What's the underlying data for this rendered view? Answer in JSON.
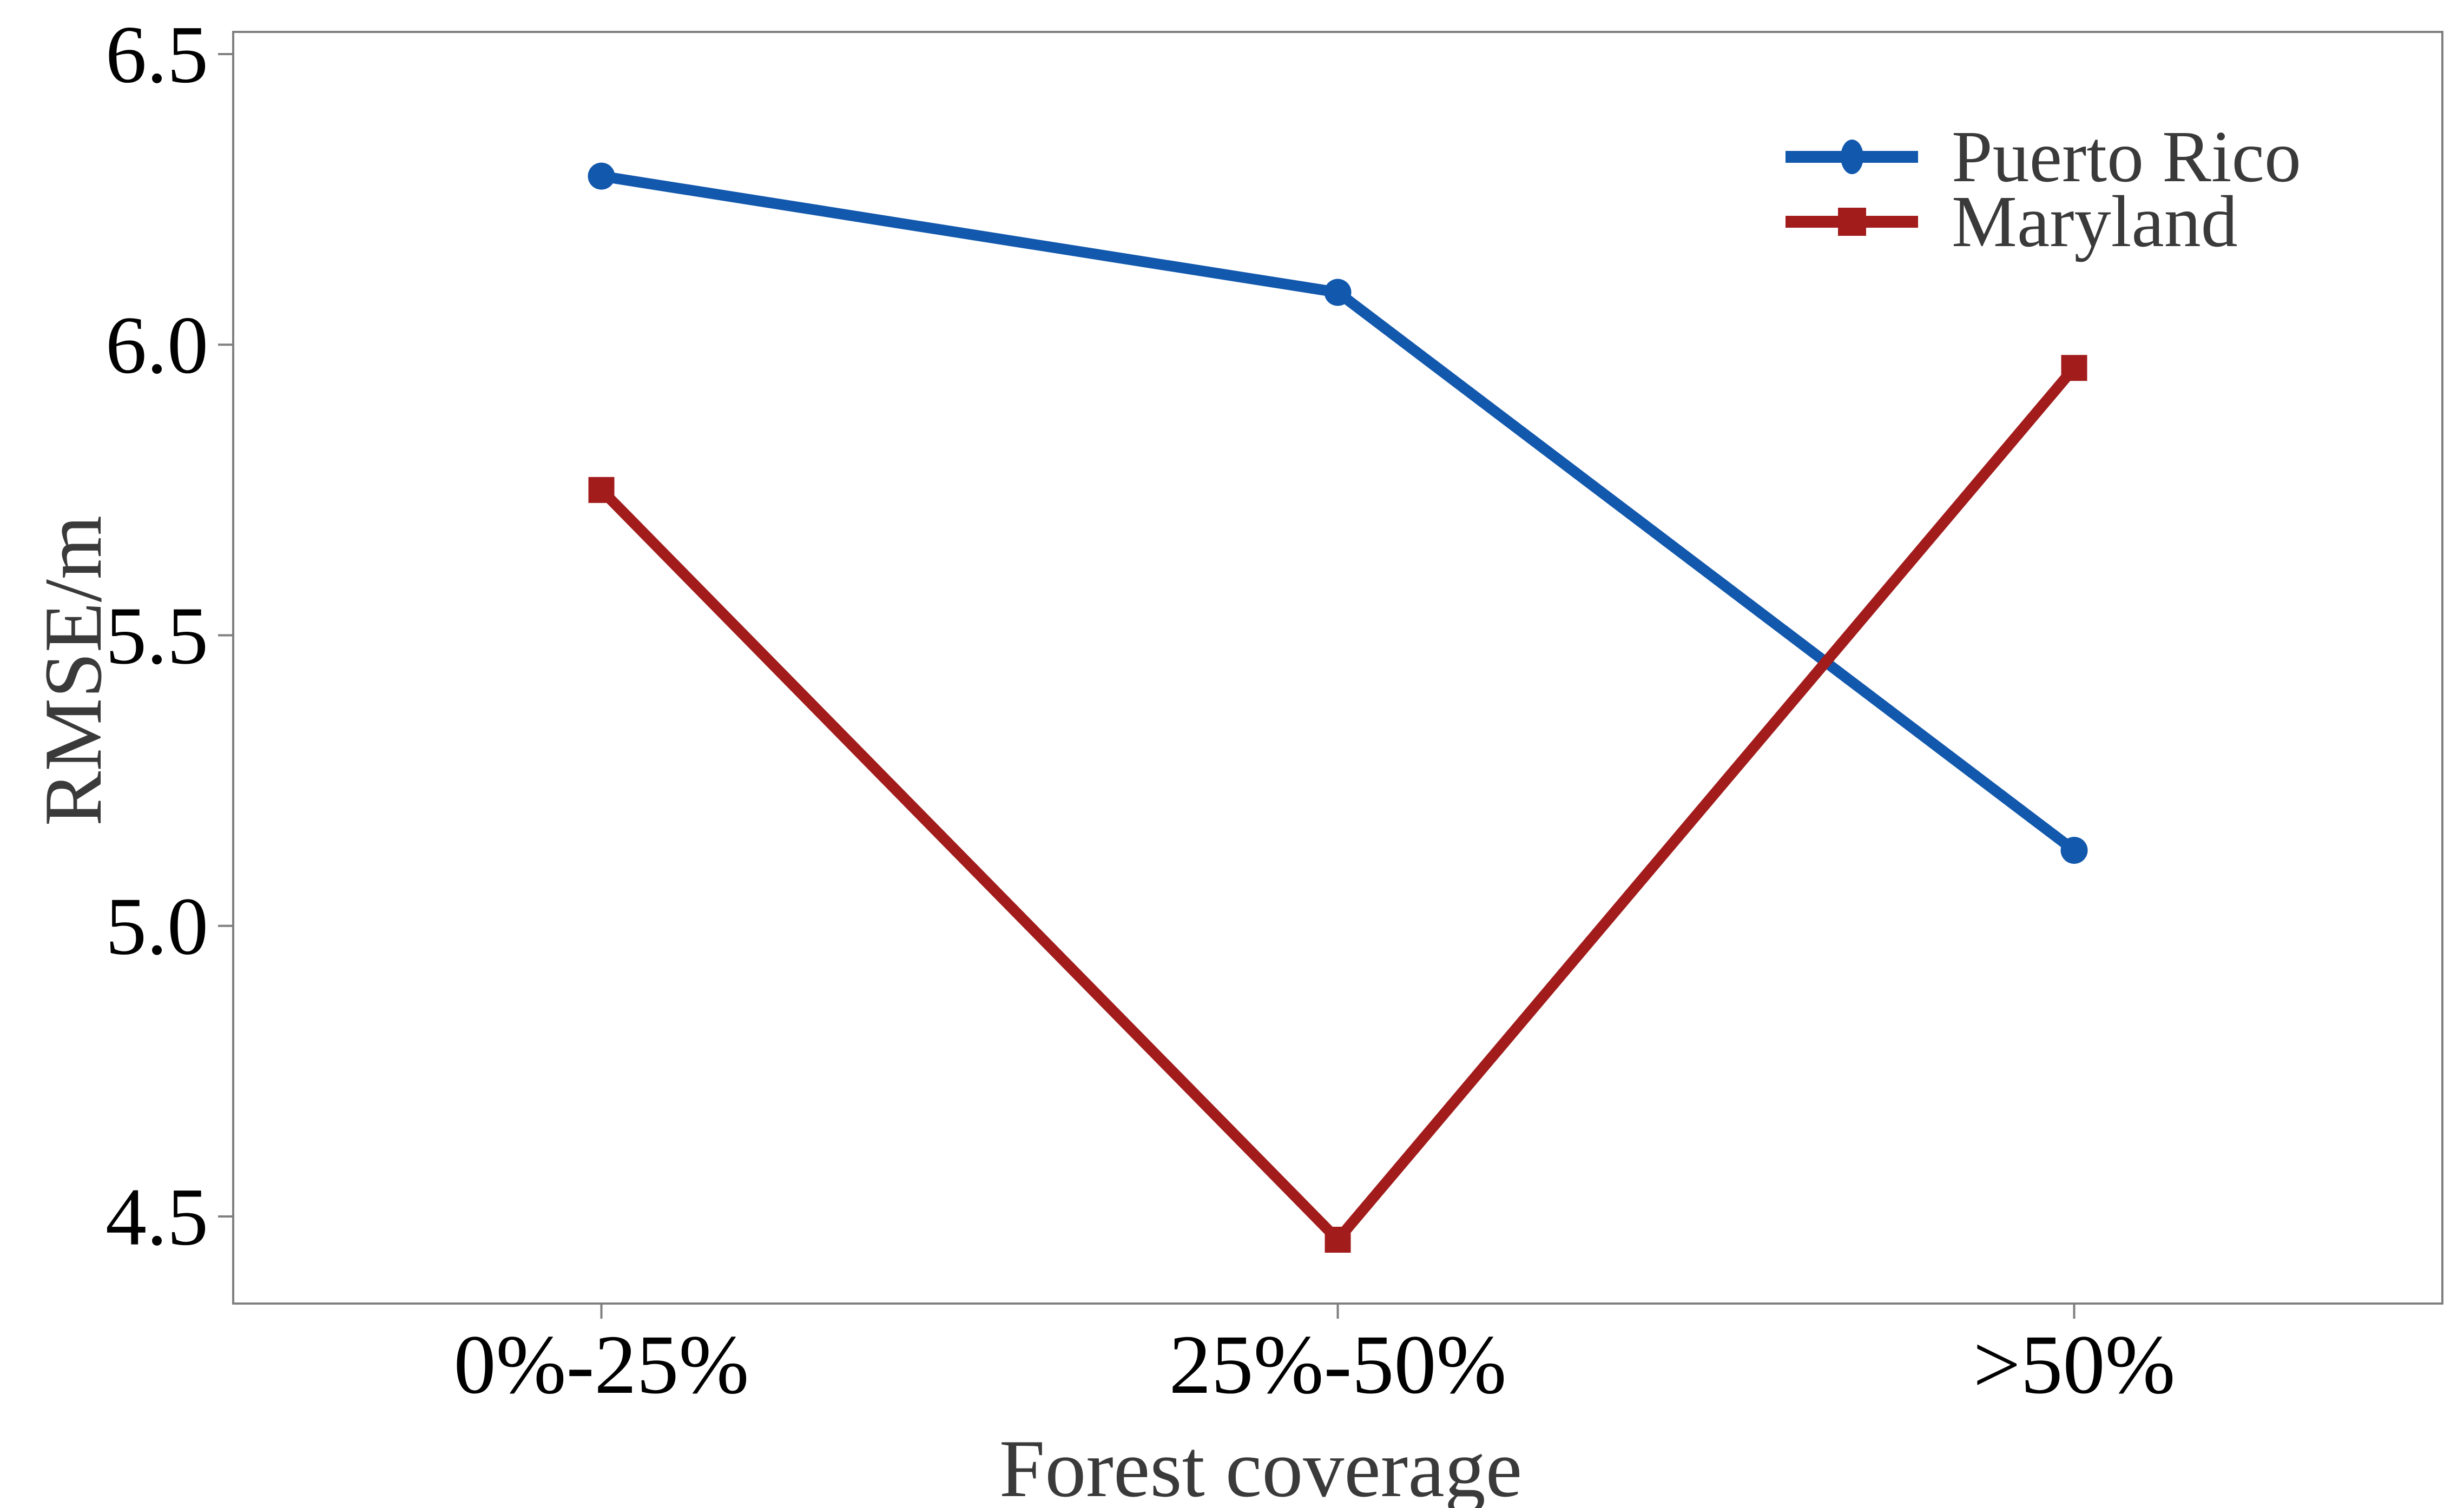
{
  "figure": {
    "background": "#ffffff",
    "frame_color": "#7f7f7f",
    "tick_color": "#7f7f7f",
    "tick_label_color": "#000000",
    "axis_title_color": "#3a3a3a",
    "legend_text_color": "#3a3a3a"
  },
  "chart_data": {
    "type": "line",
    "xlabel": "Forest coverage",
    "ylabel": "RMSE/m",
    "categories": [
      "0%-25%",
      "25%-50%",
      ">50%"
    ],
    "series": [
      {
        "name": "Puerto Rico",
        "color": "#1258ad",
        "marker": "circle",
        "values": [
          6.29,
          6.09,
          5.13
        ]
      },
      {
        "name": "Maryland",
        "color": "#a21c1c",
        "marker": "square",
        "values": [
          5.75,
          4.46,
          5.96
        ]
      }
    ],
    "yticks": [
      6.5,
      6.0,
      5.5,
      5.0,
      4.5
    ],
    "ytick_labels": [
      "6.5",
      "6.0",
      "5.5",
      "5.0",
      "4.5"
    ],
    "ylim": [
      4.35,
      6.54
    ],
    "grid": false,
    "legend_position": "top-right"
  }
}
